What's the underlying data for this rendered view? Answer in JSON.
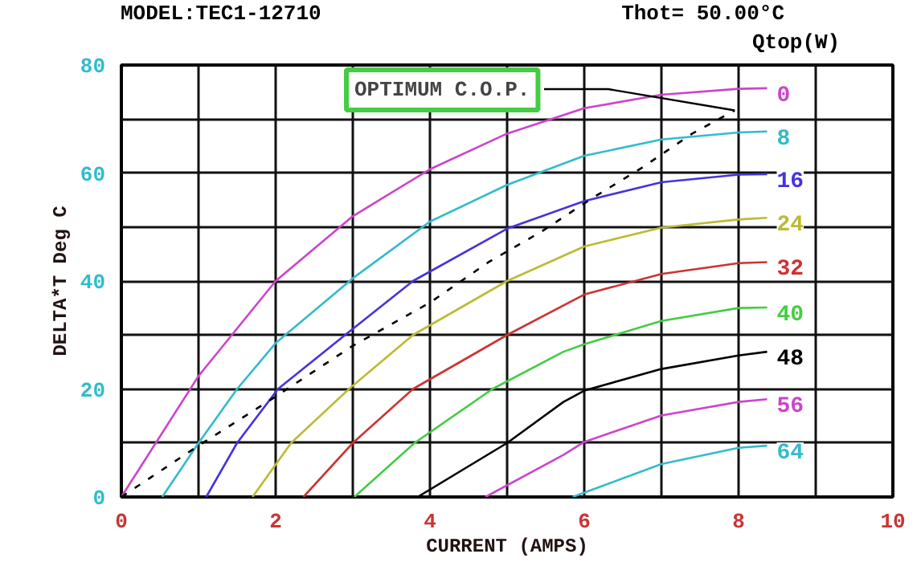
{
  "chart_data": {
    "type": "line",
    "title": "MODEL:TEC1-12710",
    "subtitle": "Thot= 50.00°C",
    "xlabel": "CURRENT (AMPS)",
    "ylabel": "DELTA*T Deg C",
    "legend_title": "Qtop(W)",
    "xlim": [
      0,
      10
    ],
    "ylim": [
      0,
      80
    ],
    "xticks": [
      0,
      {
        "value": 1,
        "label": null
      },
      2,
      {
        "value": 3,
        "label": null
      },
      4,
      {
        "value": 5,
        "label": null
      },
      6,
      {
        "value": 7,
        "label": null
      },
      8,
      {
        "value": 9,
        "label": null
      },
      10
    ],
    "yticks": [
      0,
      {
        "value": 10,
        "label": null
      },
      20,
      {
        "value": 30,
        "label": null
      },
      40,
      {
        "value": 50,
        "label": null
      },
      60,
      {
        "value": 70,
        "label": null
      },
      80
    ],
    "grid": true,
    "marker": "none",
    "series": [
      {
        "name": "0",
        "color": "#cc44cc",
        "x": [
          0,
          1,
          2,
          3,
          4,
          5,
          6,
          7,
          8,
          8.37
        ],
        "values": [
          0,
          22.4,
          40,
          52,
          60.7,
          67.3,
          72,
          74.5,
          75.6,
          75.7
        ]
      },
      {
        "name": "8",
        "color": "#33bbcc",
        "x": [
          0.53,
          1,
          1.5,
          2,
          3,
          4,
          5,
          6,
          7,
          8,
          8.37
        ],
        "values": [
          0,
          10,
          20,
          28.5,
          40.5,
          51,
          57.8,
          63.2,
          66.2,
          67.5,
          67.7
        ]
      },
      {
        "name": "16",
        "color": "#4433dd",
        "x": [
          1.1,
          1.5,
          2.03,
          2.9,
          3.78,
          5,
          6,
          7,
          8,
          8.37
        ],
        "values": [
          0,
          10,
          20,
          30,
          40,
          49.7,
          54.8,
          58.3,
          59.7,
          59.8
        ]
      },
      {
        "name": "24",
        "color": "#bbbb33",
        "x": [
          1.7,
          2.2,
          2.95,
          3.78,
          5,
          6,
          7,
          8,
          8.37
        ],
        "values": [
          0,
          10,
          20,
          30,
          40,
          46.4,
          49.9,
          51.4,
          51.7
        ]
      },
      {
        "name": "32",
        "color": "#cc3333",
        "x": [
          2.36,
          3,
          3.78,
          5,
          6,
          7,
          8,
          8.37
        ],
        "values": [
          0,
          10,
          20,
          30,
          37.5,
          41.3,
          43.3,
          43.5
        ]
      },
      {
        "name": "40",
        "color": "#44cc44",
        "x": [
          3.02,
          3.8,
          4.81,
          5.73,
          6,
          7,
          8,
          8.37
        ],
        "values": [
          0,
          10,
          20,
          26.9,
          28.3,
          32.6,
          35,
          35.1
        ]
      },
      {
        "name": "48",
        "color": "#000000",
        "x": [
          3.84,
          5,
          5.73,
          6,
          7,
          8,
          8.37
        ],
        "values": [
          0,
          10,
          17.6,
          19.7,
          23.7,
          26.2,
          26.9
        ]
      },
      {
        "name": "56",
        "color": "#cc44cc",
        "x": [
          4.72,
          5.73,
          6,
          7,
          8,
          8.37
        ],
        "values": [
          0,
          7.8,
          10.2,
          15.1,
          17.6,
          18.1
        ]
      },
      {
        "name": "64",
        "color": "#33bbcc",
        "x": [
          5.85,
          7,
          8,
          8.37
        ],
        "values": [
          0,
          6.1,
          9.1,
          9.5
        ]
      },
      {
        "name": "OPTIMUM C.O.P.",
        "color": "#000000",
        "line_style": "dashed",
        "x": [
          0,
          1,
          2,
          3,
          4,
          4.76,
          5.45,
          6.11,
          6.74,
          7.4,
          7.95
        ],
        "values": [
          0,
          9.5,
          18.6,
          28,
          36,
          43.5,
          49.2,
          55.4,
          60.9,
          67.3,
          71.6
        ]
      }
    ]
  }
}
